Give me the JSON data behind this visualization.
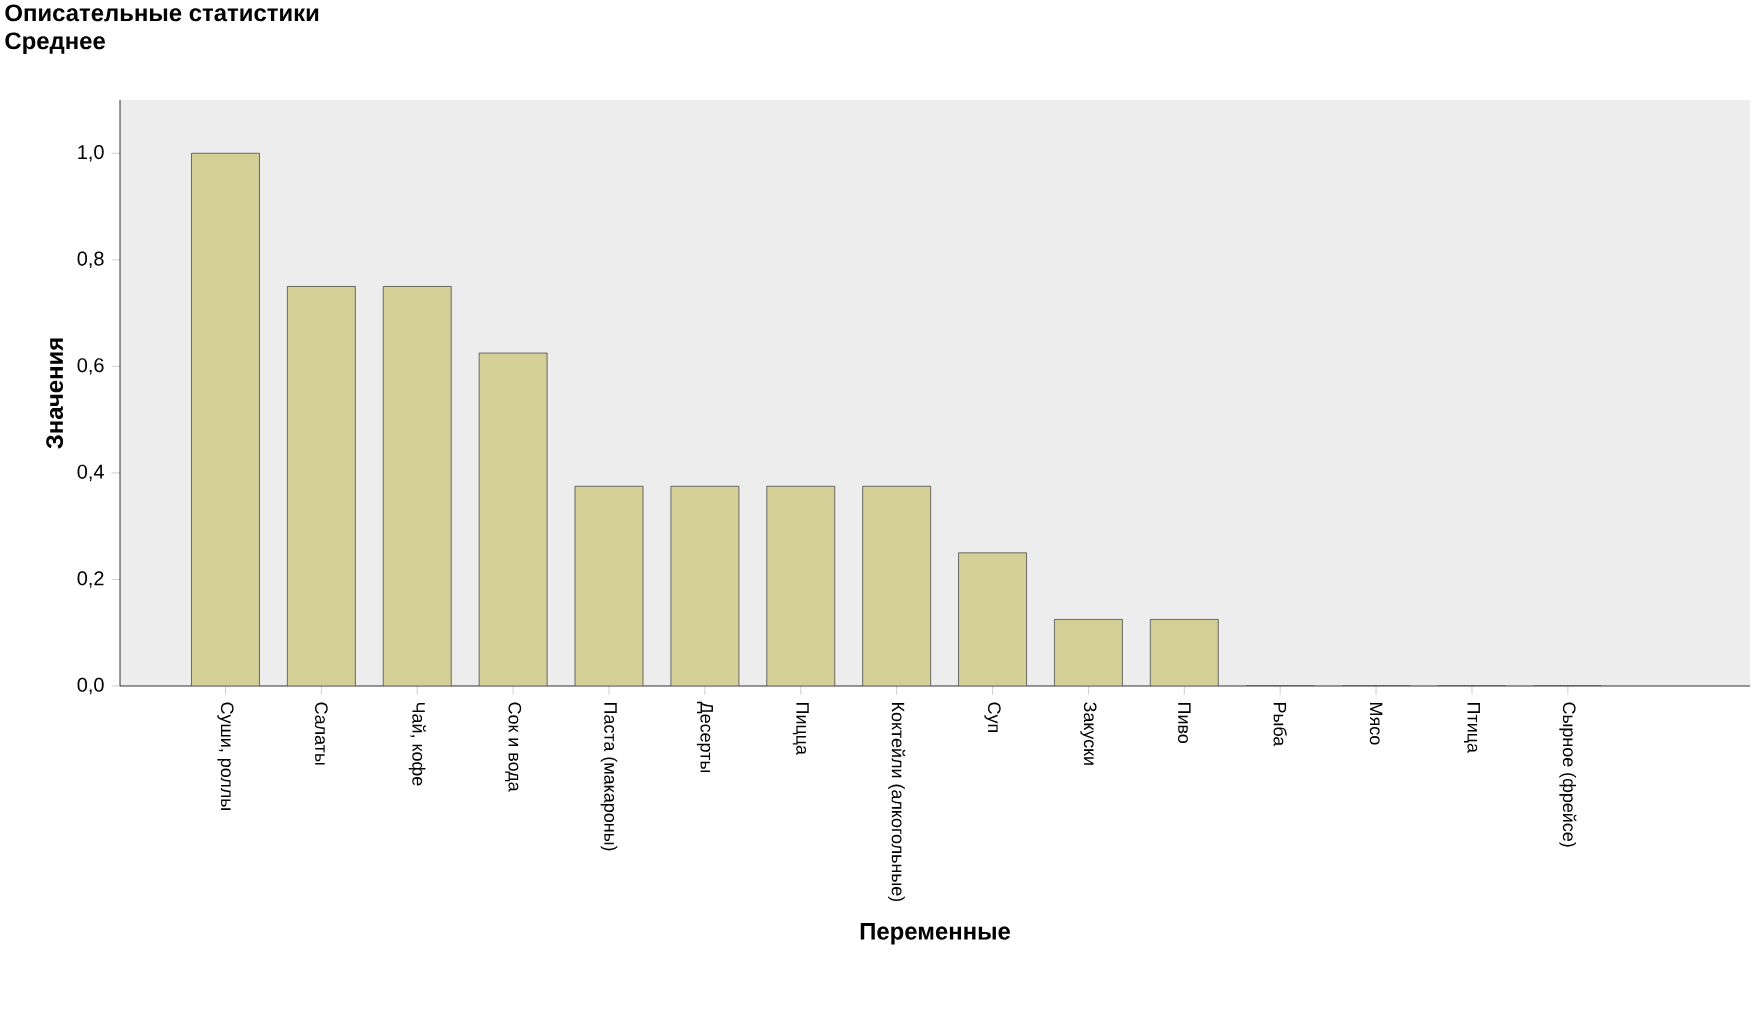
{
  "chart_data": {
    "type": "bar",
    "title": "Описательные статистики",
    "subtitle": "Среднее",
    "xlabel": "Переменные",
    "ylabel": "Значения",
    "categories": [
      "Суши, роллы",
      "Салаты",
      "Чай, кофе",
      "Сок и вода",
      "Паста (макароны)",
      "Десерты",
      "Пицца",
      "Коктейли (алкогольные)",
      "Суп",
      "Закуски",
      "Пиво",
      "Рыба",
      "Мясо",
      "Птица",
      "Сырное (фрейсе)"
    ],
    "values": [
      1.0,
      0.75,
      0.75,
      0.625,
      0.375,
      0.375,
      0.375,
      0.375,
      0.25,
      0.125,
      0.125,
      0,
      0,
      0,
      0
    ],
    "color": "#d3cf97",
    "ylim": [
      0,
      1.1
    ],
    "yticks": [
      {
        "value": 0,
        "label": "0,0"
      },
      {
        "value": 0.2,
        "label": "0,2"
      },
      {
        "value": 0.4,
        "label": "0,4"
      },
      {
        "value": 0.6,
        "label": "0,6"
      },
      {
        "value": 0.8,
        "label": "0,8"
      },
      {
        "value": 1.0,
        "label": "1,0"
      }
    ],
    "grid": false,
    "legend": false
  }
}
